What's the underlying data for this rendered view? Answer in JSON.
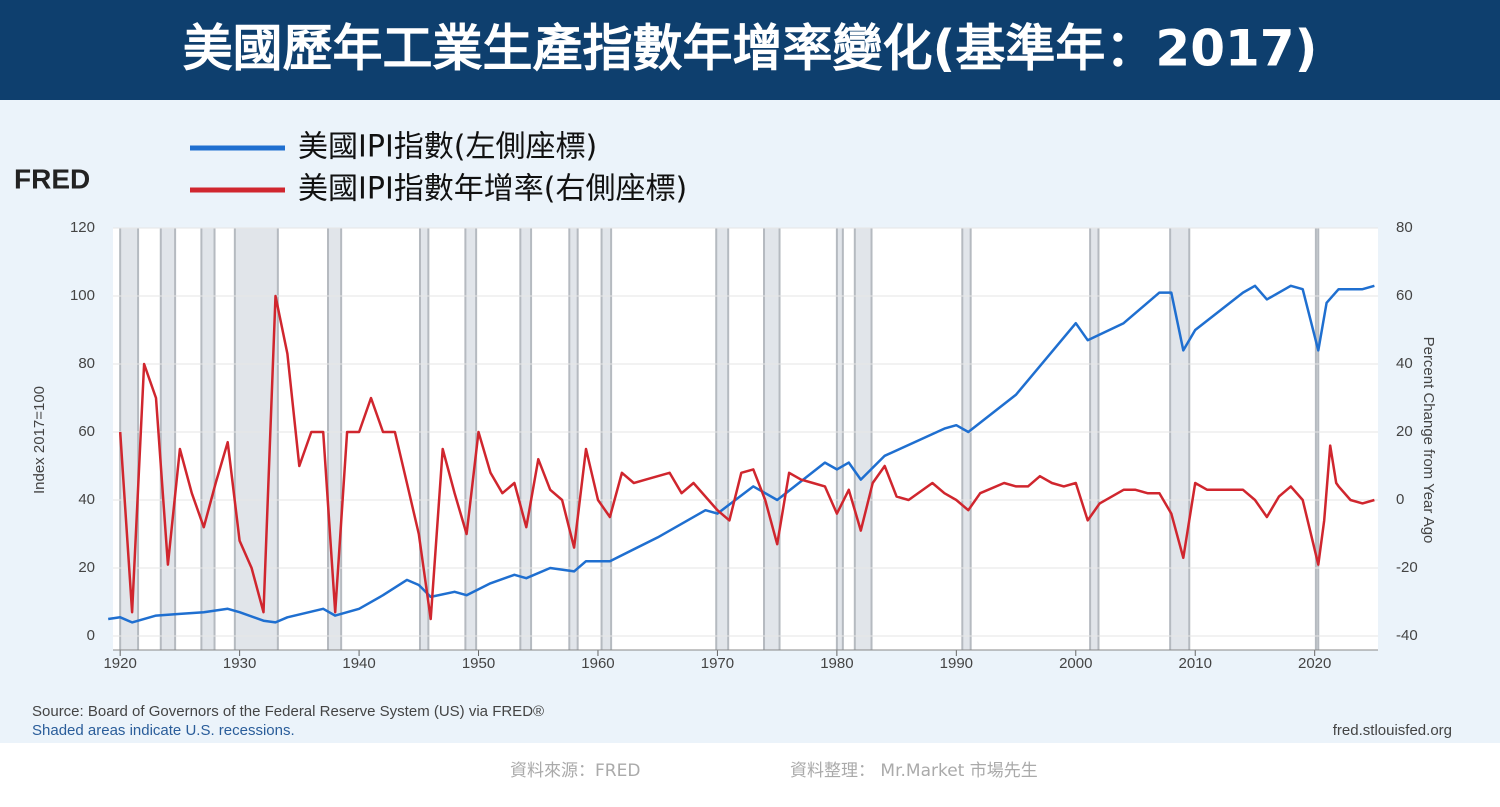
{
  "chart_data": {
    "type": "line",
    "title": "美國歷年工業生產指數年增率變化(基準年：2017)",
    "logo": "FRED",
    "y_label": "Index 2017=100",
    "y2_label": "Percent Change from Year Ago",
    "source": "Source: Board of Governors of the Federal Reserve System (US) via FRED®",
    "note": "Shaded areas indicate U.S. recessions.",
    "site": "fred.stlouisfed.org",
    "footer_source": "資料來源：FRED",
    "footer_author": "資料整理： Mr.Market 市場先生",
    "xlim": [
      1919.4,
      2025.3
    ],
    "xticks": [
      1920,
      1930,
      1940,
      1950,
      1960,
      1970,
      1980,
      1990,
      2000,
      2010,
      2020
    ],
    "ylim": [
      0,
      120
    ],
    "yticks": [
      0,
      20,
      40,
      60,
      80,
      100,
      120
    ],
    "y2lim": [
      -40,
      80
    ],
    "y2ticks": [
      -40,
      -20,
      0,
      20,
      40,
      60,
      80
    ],
    "grid": true,
    "recessions": [
      [
        1920.0,
        1921.5
      ],
      [
        1923.4,
        1924.6
      ],
      [
        1926.8,
        1927.9
      ],
      [
        1929.6,
        1933.2
      ],
      [
        1937.4,
        1938.5
      ],
      [
        1945.1,
        1945.8
      ],
      [
        1948.9,
        1949.8
      ],
      [
        1953.5,
        1954.4
      ],
      [
        1957.6,
        1958.3
      ],
      [
        1960.3,
        1961.1
      ],
      [
        1969.9,
        1970.9
      ],
      [
        1973.9,
        1975.2
      ],
      [
        1980.0,
        1980.5
      ],
      [
        1981.5,
        1982.9
      ],
      [
        1990.5,
        1991.2
      ],
      [
        2001.2,
        2001.9
      ],
      [
        2007.9,
        2009.5
      ],
      [
        2020.1,
        2020.3
      ]
    ],
    "series": [
      {
        "name": "美國IPI指數(左側座標)",
        "color": "#1f6fd0",
        "axis": "y",
        "x": [
          1919,
          1920,
          1921,
          1923,
          1925,
          1927,
          1929,
          1930,
          1932,
          1933,
          1934,
          1937,
          1938,
          1940,
          1942,
          1944,
          1945,
          1946,
          1948,
          1949,
          1951,
          1953,
          1954,
          1956,
          1958,
          1959,
          1960,
          1961,
          1965,
          1969,
          1970,
          1973,
          1975,
          1979,
          1980,
          1981,
          1982,
          1984,
          1989,
          1990,
          1991,
          1995,
          2000,
          2001,
          2004,
          2007,
          2008,
          2009,
          2010,
          2014,
          2015,
          2016,
          2018,
          2019,
          2020.3,
          2021,
          2022,
          2024,
          2025
        ],
        "values": [
          5,
          5.5,
          4,
          6,
          6.5,
          7,
          8,
          7,
          4.5,
          4,
          5.5,
          8,
          6,
          8,
          12,
          16.5,
          15,
          11.5,
          13,
          12,
          15.5,
          18,
          17,
          20,
          19,
          22,
          22,
          22,
          29,
          37,
          36,
          44,
          40,
          51,
          49,
          51,
          46,
          53,
          61,
          62,
          60,
          71,
          92,
          87,
          92,
          101,
          101,
          84,
          90,
          101,
          103,
          99,
          103,
          102,
          84,
          98,
          102,
          102,
          103
        ]
      },
      {
        "name": "美國IPI指數年增率(右側座標)",
        "color": "#d0262e",
        "axis": "y2",
        "x": [
          1920,
          1921,
          1922,
          1923,
          1924,
          1925,
          1926,
          1927,
          1928,
          1929,
          1930,
          1931,
          1932,
          1933,
          1934,
          1935,
          1936,
          1937,
          1938,
          1939,
          1940,
          1941,
          1942,
          1943,
          1944,
          1945,
          1946,
          1947,
          1948,
          1949,
          1950,
          1951,
          1952,
          1953,
          1954,
          1955,
          1956,
          1957,
          1958,
          1959,
          1960,
          1961,
          1962,
          1963,
          1964,
          1966,
          1967,
          1968,
          1970,
          1971,
          1972,
          1973,
          1974,
          1975,
          1976,
          1977,
          1978,
          1979,
          1980,
          1981,
          1982,
          1983,
          1984,
          1985,
          1986,
          1988,
          1989,
          1990,
          1991,
          1992,
          1994,
          1995,
          1996,
          1997,
          1998,
          1999,
          2000,
          2001,
          2002,
          2004,
          2005,
          2006,
          2007,
          2008,
          2009,
          2010,
          2011,
          2012,
          2014,
          2015,
          2016,
          2017,
          2018,
          2019,
          2020.3,
          2020.8,
          2021.3,
          2021.8,
          2022,
          2023,
          2024,
          2025
        ],
        "values": [
          20,
          -33,
          40,
          30,
          -19,
          15,
          2,
          -8,
          5,
          17,
          -12,
          -20,
          -33,
          60,
          43,
          10,
          20,
          20,
          -33,
          20,
          20,
          30,
          20,
          20,
          5,
          -10,
          -35,
          15,
          2,
          -10,
          20,
          8,
          2,
          5,
          -8,
          12,
          3,
          0,
          -14,
          15,
          0,
          -5,
          8,
          5,
          6,
          8,
          2,
          5,
          -3,
          -6,
          8,
          9,
          0,
          -13,
          8,
          6,
          5,
          4,
          -4,
          3,
          -9,
          5,
          10,
          1,
          0,
          5,
          2,
          0,
          -3,
          2,
          5,
          4,
          4,
          7,
          5,
          4,
          5,
          -6,
          -1,
          3,
          3,
          2,
          2,
          -4,
          -17,
          5,
          3,
          3,
          3,
          0,
          -5,
          1,
          4,
          0,
          -19,
          -6,
          16,
          5,
          4,
          0,
          -1,
          0
        ]
      }
    ]
  }
}
